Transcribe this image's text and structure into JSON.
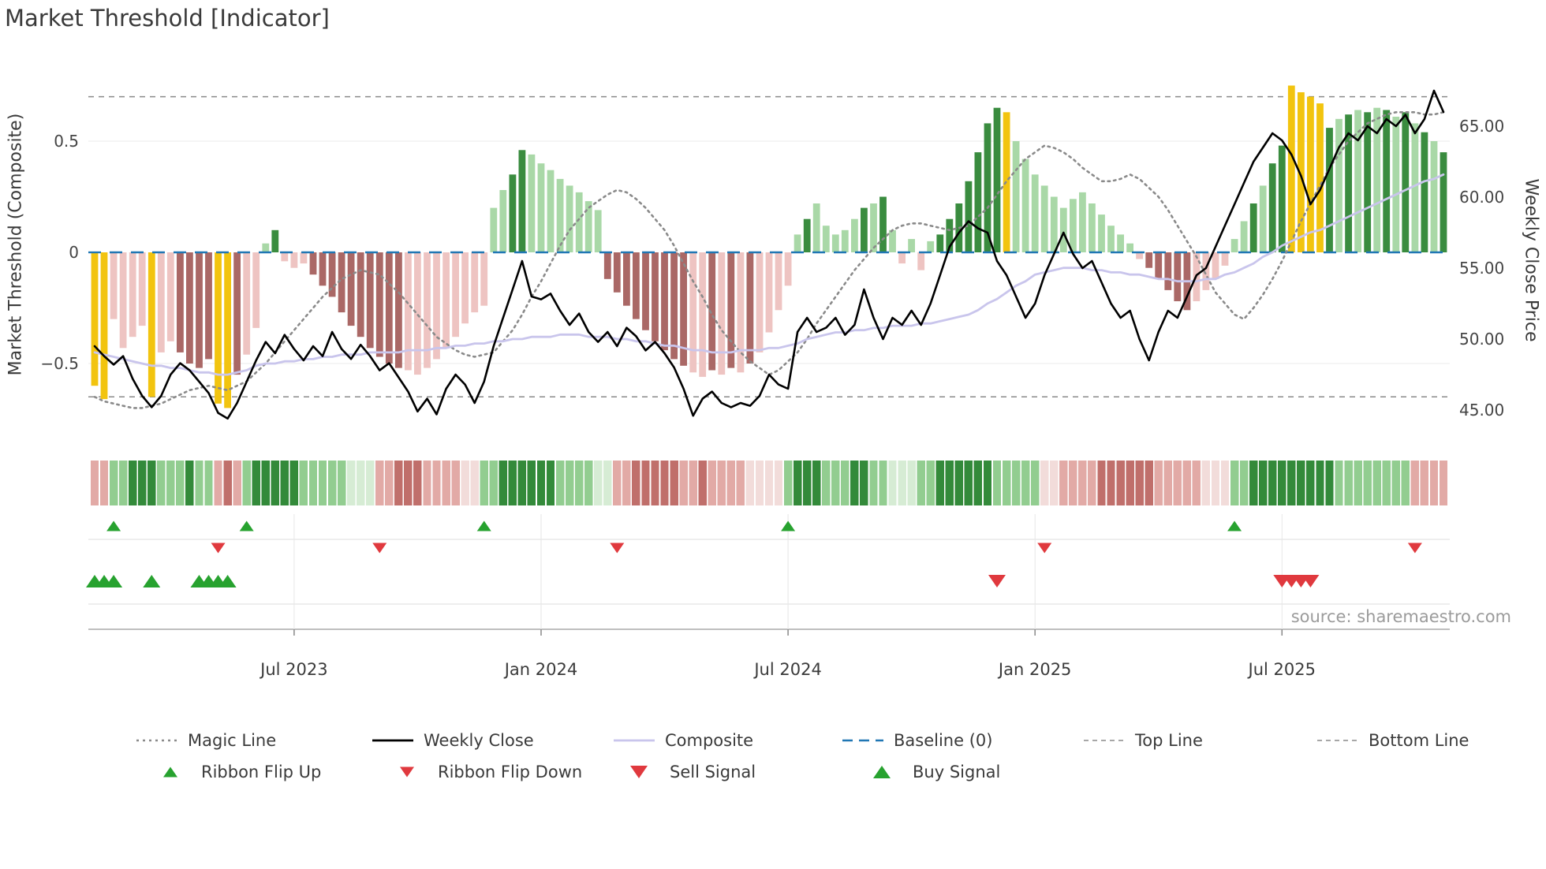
{
  "title": "Market Threshold [Indicator]",
  "source_note": "source: sharemaestro.com",
  "axes": {
    "left_title": "Market Threshold (Composite)",
    "right_title": "Weekly Close Price",
    "left_ticks": [
      {
        "value": 0.5,
        "label": "0.5"
      },
      {
        "value": 0,
        "label": "0"
      },
      {
        "value": -0.5,
        "label": "−0.5"
      }
    ],
    "right_ticks": [
      {
        "value": 65,
        "label": "65.00"
      },
      {
        "value": 60,
        "label": "60.00"
      },
      {
        "value": 55,
        "label": "55.00"
      },
      {
        "value": 50,
        "label": "50.00"
      },
      {
        "value": 45,
        "label": "45.00"
      }
    ],
    "x_ticks": [
      {
        "week": 21,
        "label": "Jul 2023"
      },
      {
        "week": 47,
        "label": "Jan 2024"
      },
      {
        "week": 73,
        "label": "Jul 2024"
      },
      {
        "week": 99,
        "label": "Jan 2025"
      },
      {
        "week": 125,
        "label": "Jul 2025"
      }
    ]
  },
  "palette": {
    "bar_yellow": "#f2c40f",
    "bar_dark_green": "#3a8c3f",
    "bar_light_green": "#a9d8a7",
    "bar_pink": "#eec4c2",
    "bar_dark_red": "#aa6866",
    "ribbon_dark_green": "#338a3a",
    "ribbon_light_green": "#92cd90",
    "ribbon_pale_green": "#d6ecd4",
    "ribbon_pale_red": "#f2dcda",
    "ribbon_light_red": "#e2aaa6",
    "ribbon_dark_red": "#c06f6b",
    "weekly_close": "#000000",
    "composite_line": "#c9c5ec",
    "magic_line": "#8a8a8a",
    "baseline": "#2077b4",
    "band_line": "#8a8a8a",
    "signal_green": "#27a22f",
    "signal_red": "#e0393e",
    "grid": "#ebebeb",
    "axis_text": "#444444",
    "title_text": "#3a3a3a",
    "source_text": "#9b9b9b"
  },
  "legend": {
    "row1": [
      {
        "label": "Magic Line",
        "marker": "dotted",
        "color": "#8a8a8a"
      },
      {
        "label": "Weekly Close",
        "marker": "solid",
        "color": "#000000"
      },
      {
        "label": "Composite",
        "marker": "solid",
        "color": "#c9c5ec"
      },
      {
        "label": "Baseline (0)",
        "marker": "dashed",
        "color": "#2077b4"
      },
      {
        "label": "Top Line",
        "marker": "fine-dash",
        "color": "#8a8a8a"
      },
      {
        "label": "Bottom Line",
        "marker": "fine-dash",
        "color": "#8a8a8a"
      }
    ],
    "row2": [
      {
        "label": "Ribbon Flip Up",
        "marker": "tri-up",
        "size": "sm",
        "color": "#27a22f"
      },
      {
        "label": "Ribbon Flip Down",
        "marker": "tri-down",
        "size": "sm",
        "color": "#e0393e"
      },
      {
        "label": "Sell Signal",
        "marker": "tri-down",
        "size": "lg",
        "color": "#e0393e"
      },
      {
        "label": "Buy Signal",
        "marker": "tri-up",
        "size": "lg",
        "color": "#27a22f"
      }
    ]
  },
  "chart_data": {
    "type": "bar+line",
    "weeks": 143,
    "x_unit": "week",
    "left_ylim": [
      -0.8,
      0.85
    ],
    "right_ylim": [
      43,
      69
    ],
    "top_line": 0.7,
    "bottom_line": -0.65,
    "baseline": 0,
    "bars": {
      "color_key": {
        "y": "yellow-extreme",
        "g": "dark-green",
        "l": "light-green",
        "p": "light-red",
        "r": "dark-red"
      },
      "values": [
        -0.6,
        -0.66,
        -0.3,
        -0.43,
        -0.38,
        -0.33,
        -0.65,
        -0.45,
        -0.4,
        -0.45,
        -0.5,
        -0.52,
        -0.48,
        -0.68,
        -0.7,
        -0.55,
        -0.46,
        -0.34,
        0.04,
        0.1,
        -0.04,
        -0.07,
        -0.05,
        -0.1,
        -0.15,
        -0.2,
        -0.27,
        -0.33,
        -0.38,
        -0.43,
        -0.47,
        -0.5,
        -0.52,
        -0.53,
        -0.55,
        -0.52,
        -0.48,
        -0.43,
        -0.38,
        -0.32,
        -0.27,
        -0.24,
        0.2,
        0.28,
        0.35,
        0.46,
        0.44,
        0.4,
        0.37,
        0.33,
        0.3,
        0.27,
        0.23,
        0.19,
        -0.12,
        -0.18,
        -0.24,
        -0.3,
        -0.35,
        -0.4,
        -0.44,
        -0.48,
        -0.51,
        -0.54,
        -0.56,
        -0.53,
        -0.55,
        -0.52,
        -0.54,
        -0.5,
        -0.45,
        -0.36,
        -0.26,
        -0.15,
        0.08,
        0.15,
        0.22,
        0.12,
        0.08,
        0.1,
        0.15,
        0.2,
        0.22,
        0.25,
        0.1,
        -0.05,
        0.06,
        -0.08,
        0.05,
        0.08,
        0.15,
        0.22,
        0.32,
        0.45,
        0.58,
        0.65,
        0.63,
        0.5,
        0.42,
        0.35,
        0.3,
        0.25,
        0.2,
        0.24,
        0.27,
        0.22,
        0.17,
        0.12,
        0.08,
        0.04,
        -0.03,
        -0.07,
        -0.12,
        -0.17,
        -0.22,
        -0.26,
        -0.22,
        -0.17,
        -0.12,
        -0.06,
        0.06,
        0.14,
        0.22,
        0.3,
        0.4,
        0.48,
        0.75,
        0.72,
        0.7,
        0.67,
        0.56,
        0.6,
        0.62,
        0.64,
        0.63,
        0.65,
        0.64,
        0.61,
        0.63,
        0.58,
        0.54,
        0.5,
        0.45
      ],
      "colors": [
        "yyppppyppr",
        "rrryyrpplg",
        "ppprrrrrrr",
        "rrrppppppp",
        "ppllggllll",
        "llllrrrrrr",
        "rrrpprprpr",
        "pppplgllll",
        "lglglplplg",
        "ggggggylll",
        "llllllllll",
        "prrrrrpppp",
        "llglggyyyy",
        "glglglglgl",
        "glg"
      ]
    },
    "weekly_close": [
      49.5,
      48.8,
      48.2,
      48.8,
      47.2,
      46.0,
      45.2,
      46.0,
      47.5,
      48.3,
      47.8,
      47.0,
      46.2,
      44.8,
      44.4,
      45.5,
      47.0,
      48.5,
      49.8,
      49.0,
      50.3,
      49.3,
      48.5,
      49.5,
      48.8,
      50.5,
      49.3,
      48.6,
      49.6,
      48.8,
      47.8,
      48.3,
      47.3,
      46.3,
      44.9,
      45.8,
      44.7,
      46.5,
      47.5,
      46.8,
      45.5,
      47.0,
      49.5,
      51.5,
      53.5,
      55.5,
      53.0,
      52.8,
      53.2,
      52.0,
      51.0,
      51.8,
      50.5,
      49.8,
      50.5,
      49.5,
      50.8,
      50.2,
      49.2,
      49.8,
      49.0,
      48.0,
      46.5,
      44.6,
      45.8,
      46.3,
      45.5,
      45.2,
      45.5,
      45.3,
      46.0,
      47.5,
      46.8,
      46.5,
      50.5,
      51.5,
      50.5,
      50.8,
      51.5,
      50.3,
      51.0,
      53.5,
      51.5,
      50.0,
      51.5,
      51.0,
      52.0,
      51.0,
      52.5,
      54.5,
      56.5,
      57.5,
      58.3,
      57.8,
      57.5,
      55.5,
      54.5,
      53.0,
      51.5,
      52.5,
      54.5,
      56.0,
      57.5,
      56.0,
      55.0,
      55.5,
      54.0,
      52.5,
      51.5,
      52.0,
      50.0,
      48.5,
      50.5,
      52.0,
      51.5,
      53.0,
      54.5,
      55.0,
      56.5,
      58.0,
      59.5,
      61.0,
      62.5,
      63.5,
      64.5,
      64.0,
      63.0,
      61.5,
      59.5,
      60.5,
      62.0,
      63.5,
      64.5,
      64.0,
      65.0,
      64.5,
      65.5,
      65.0,
      65.8,
      64.5,
      65.5,
      67.5,
      66.0
    ],
    "composite": [
      -0.45,
      -0.46,
      -0.47,
      -0.48,
      -0.49,
      -0.5,
      -0.51,
      -0.51,
      -0.52,
      -0.52,
      -0.53,
      -0.54,
      -0.54,
      -0.55,
      -0.55,
      -0.54,
      -0.53,
      -0.51,
      -0.5,
      -0.5,
      -0.49,
      -0.49,
      -0.48,
      -0.48,
      -0.47,
      -0.47,
      -0.46,
      -0.46,
      -0.46,
      -0.45,
      -0.45,
      -0.45,
      -0.45,
      -0.44,
      -0.44,
      -0.44,
      -0.43,
      -0.43,
      -0.42,
      -0.42,
      -0.41,
      -0.41,
      -0.4,
      -0.4,
      -0.39,
      -0.39,
      -0.38,
      -0.38,
      -0.38,
      -0.37,
      -0.37,
      -0.37,
      -0.38,
      -0.38,
      -0.38,
      -0.39,
      -0.39,
      -0.4,
      -0.4,
      -0.41,
      -0.42,
      -0.42,
      -0.43,
      -0.44,
      -0.44,
      -0.45,
      -0.45,
      -0.45,
      -0.44,
      -0.44,
      -0.44,
      -0.43,
      -0.43,
      -0.42,
      -0.41,
      -0.39,
      -0.38,
      -0.37,
      -0.36,
      -0.36,
      -0.35,
      -0.35,
      -0.34,
      -0.34,
      -0.33,
      -0.33,
      -0.33,
      -0.32,
      -0.32,
      -0.31,
      -0.3,
      -0.29,
      -0.28,
      -0.26,
      -0.23,
      -0.21,
      -0.18,
      -0.15,
      -0.13,
      -0.1,
      -0.09,
      -0.08,
      -0.07,
      -0.07,
      -0.07,
      -0.08,
      -0.08,
      -0.09,
      -0.09,
      -0.1,
      -0.1,
      -0.11,
      -0.12,
      -0.12,
      -0.13,
      -0.13,
      -0.13,
      -0.12,
      -0.12,
      -0.1,
      -0.09,
      -0.07,
      -0.05,
      -0.02,
      0.0,
      0.03,
      0.05,
      0.07,
      0.09,
      0.1,
      0.12,
      0.14,
      0.16,
      0.18,
      0.2,
      0.22,
      0.24,
      0.26,
      0.28,
      0.3,
      0.32,
      0.33,
      0.35
    ],
    "magic_line": [
      -0.65,
      -0.67,
      -0.68,
      -0.69,
      -0.7,
      -0.7,
      -0.69,
      -0.68,
      -0.66,
      -0.64,
      -0.62,
      -0.61,
      -0.6,
      -0.61,
      -0.62,
      -0.6,
      -0.58,
      -0.54,
      -0.5,
      -0.45,
      -0.4,
      -0.35,
      -0.3,
      -0.25,
      -0.2,
      -0.16,
      -0.12,
      -0.1,
      -0.08,
      -0.09,
      -0.1,
      -0.14,
      -0.18,
      -0.23,
      -0.28,
      -0.33,
      -0.38,
      -0.41,
      -0.44,
      -0.46,
      -0.47,
      -0.46,
      -0.45,
      -0.4,
      -0.35,
      -0.28,
      -0.2,
      -0.13,
      -0.05,
      0.03,
      0.1,
      0.15,
      0.2,
      0.23,
      0.26,
      0.28,
      0.27,
      0.24,
      0.2,
      0.15,
      0.1,
      0.03,
      -0.05,
      -0.13,
      -0.2,
      -0.28,
      -0.35,
      -0.4,
      -0.45,
      -0.49,
      -0.52,
      -0.55,
      -0.53,
      -0.49,
      -0.45,
      -0.39,
      -0.32,
      -0.26,
      -0.2,
      -0.14,
      -0.08,
      -0.03,
      0.02,
      0.06,
      0.1,
      0.12,
      0.13,
      0.13,
      0.12,
      0.11,
      0.1,
      0.11,
      0.12,
      0.16,
      0.2,
      0.26,
      0.32,
      0.37,
      0.42,
      0.45,
      0.48,
      0.47,
      0.45,
      0.42,
      0.38,
      0.35,
      0.32,
      0.32,
      0.33,
      0.35,
      0.33,
      0.29,
      0.25,
      0.19,
      0.12,
      0.05,
      -0.02,
      -0.1,
      -0.18,
      -0.23,
      -0.28,
      -0.3,
      -0.25,
      -0.19,
      -0.12,
      -0.04,
      0.05,
      0.14,
      0.22,
      0.3,
      0.38,
      0.44,
      0.5,
      0.54,
      0.58,
      0.6,
      0.62,
      0.63,
      0.63,
      0.63,
      0.62,
      0.62,
      0.63
    ],
    "ribbon_color_key": {
      "G": "dark-green",
      "g": "light-green",
      "h": "pale-green",
      "e": "pale-red",
      "r": "light-red",
      "R": "dark-red"
    },
    "ribbon": [
      "rrggGGGggg",
      "GggrRrgGGG",
      "GGggggghhh",
      "rrRRRrrrre",
      "eggGGGGGGg",
      "ggghhrrRRR",
      "RRrrRrrrre",
      "eeegGGGggg",
      "GGgghhhggG",
      "GGGGGggggg",
      "eerrrrRRRR",
      "RRrrrrreee",
      "ggGGGGGGGG",
      "Gggggggggr",
      "rrr"
    ],
    "signals": {
      "ribbon_flip_up_weeks": [
        2,
        16,
        41,
        73,
        120
      ],
      "ribbon_flip_down_weeks": [
        13,
        30,
        55,
        100,
        139
      ],
      "buy_signal_weeks": [
        0,
        1,
        2,
        6,
        11,
        12,
        13,
        14
      ],
      "sell_signal_weeks": [
        95,
        125,
        126,
        127,
        128
      ]
    }
  }
}
